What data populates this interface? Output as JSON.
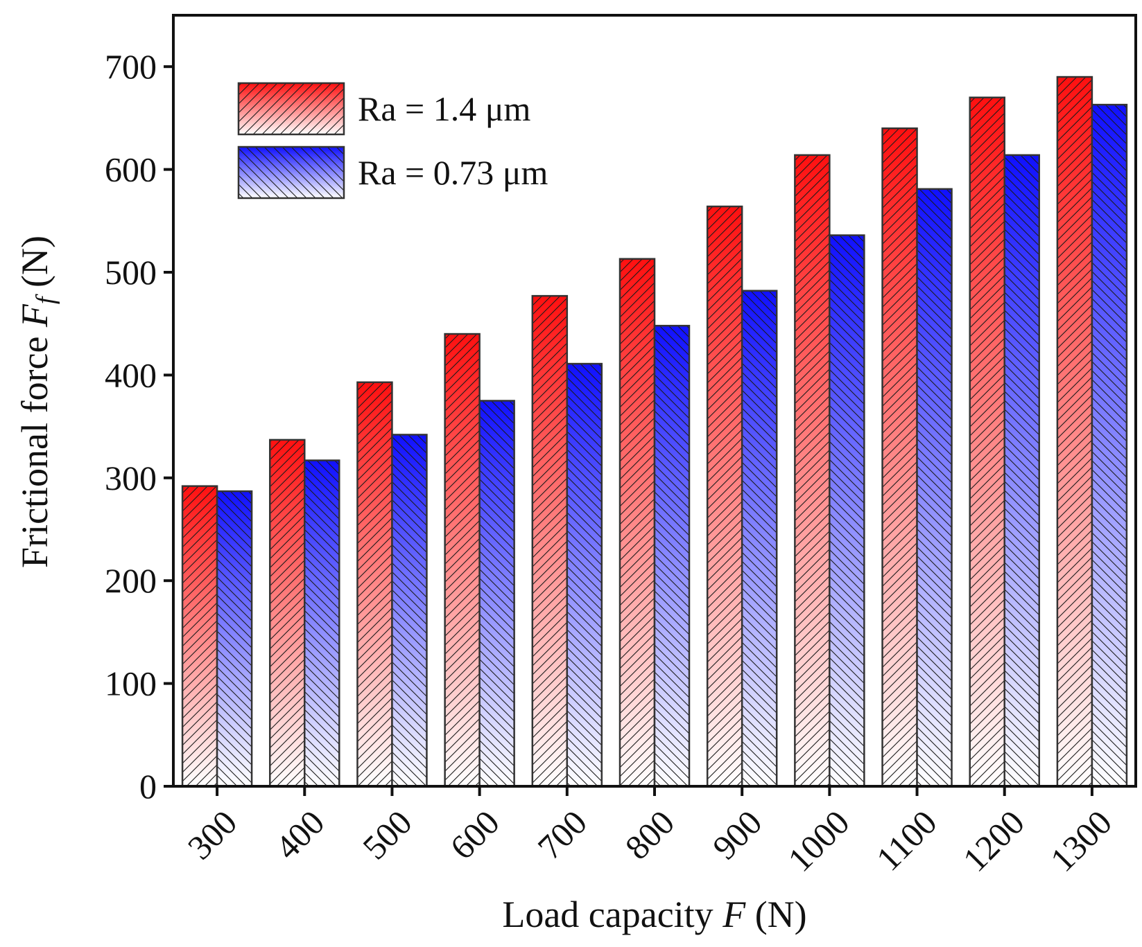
{
  "chart_data": {
    "type": "bar",
    "title": "",
    "xlabel": {
      "prefix": "Load capacity ",
      "variable": "F",
      "suffix": " (N)"
    },
    "ylabel": {
      "prefix": "Frictional force ",
      "variable": "F",
      "subscript": "f",
      "suffix": " (N)"
    },
    "categories": [
      "300",
      "400",
      "500",
      "600",
      "700",
      "800",
      "900",
      "1000",
      "1100",
      "1200",
      "1300"
    ],
    "ylim": [
      0,
      750
    ],
    "yticks": [
      0,
      100,
      200,
      300,
      400,
      500,
      600,
      700
    ],
    "grid": false,
    "legend_position": "top-left",
    "series": [
      {
        "name": "Ra = 1.4 μm",
        "color": "#ff1a1a",
        "hatch": "forward-diagonal",
        "values": [
          292,
          337,
          393,
          440,
          477,
          513,
          564,
          614,
          640,
          670,
          690
        ]
      },
      {
        "name": "Ra = 0.73 μm",
        "color": "#1a1aff",
        "hatch": "back-diagonal",
        "values": [
          287,
          317,
          342,
          375,
          411,
          448,
          482,
          536,
          581,
          614,
          663
        ]
      }
    ]
  }
}
